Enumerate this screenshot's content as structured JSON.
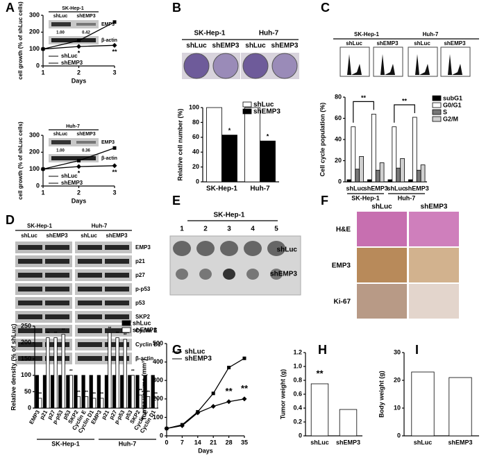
{
  "panels": [
    "A",
    "B",
    "C",
    "D",
    "E",
    "F",
    "G",
    "H",
    "I"
  ],
  "panel_a": {
    "blots": [
      {
        "cell": "SK-Hep-1",
        "lanes": [
          "shLuc",
          "shEMP3"
        ],
        "bands": [
          "EMP3",
          "β-actin"
        ],
        "ratios": [
          "1.00",
          "0.42"
        ]
      },
      {
        "cell": "Huh-7",
        "lanes": [
          "shLuc",
          "shEMP3"
        ],
        "bands": [
          "EMP3",
          "β-actin"
        ],
        "ratios": [
          "1.00",
          "0.36"
        ]
      }
    ]
  },
  "panel_b": {
    "cells": [
      "SK-Hep-1",
      "Huh-7"
    ],
    "lanes": [
      "shLuc",
      "shEMP3",
      "shLuc",
      "shEMP3"
    ]
  },
  "panel_c": {
    "cells": [
      "SK-Hep-1",
      "Huh-7"
    ],
    "lanes": [
      "shLuc",
      "shEMP3",
      "shLuc",
      "shEMP3"
    ]
  },
  "panel_d": {
    "cells": [
      "SK-Hep-1",
      "Huh-7"
    ],
    "lanes": [
      "shLuc",
      "shEMP3",
      "shLuc",
      "shEMP3"
    ],
    "bands": [
      "EMP3",
      "p21",
      "p27",
      "p-p53",
      "p53",
      "SKP2",
      "Cyclin E",
      "Cyclin D1",
      "β-actin"
    ]
  },
  "panel_e": {
    "cell": "SK-Hep-1",
    "numbers": [
      "1",
      "2",
      "3",
      "4",
      "5"
    ],
    "rows": [
      "shLuc",
      "shEMP3"
    ]
  },
  "panel_f": {
    "columns": [
      "shLuc",
      "shEMP3"
    ],
    "rows": [
      "H&E",
      "EMP3",
      "Ki-67"
    ]
  },
  "chart_data": [
    {
      "type": "line",
      "x": [
        1,
        2,
        3
      ],
      "xlim": [
        1,
        3
      ],
      "xticks": [
        1,
        2,
        3
      ],
      "ylim": [
        0,
        300
      ],
      "yticks": [
        0,
        100,
        200,
        300
      ],
      "xlabel": "Days",
      "ylabel": "cell growth (% of shLuc cells)",
      "series": [
        {
          "name": "shLuc",
          "color": "#000",
          "values": [
            100,
            150,
            260
          ]
        },
        {
          "name": "shEMP3",
          "color": "#000",
          "values": [
            100,
            115,
            122
          ]
        }
      ],
      "annotations": [
        "*",
        "**"
      ]
    },
    {
      "type": "line",
      "x": [
        1,
        2,
        3
      ],
      "xlim": [
        1,
        3
      ],
      "xticks": [
        1,
        2,
        3
      ],
      "ylim": [
        0,
        300
      ],
      "yticks": [
        0,
        100,
        200,
        300
      ],
      "xlabel": "Days",
      "ylabel": "cell growth (% of shLuc cells)",
      "series": [
        {
          "name": "shLuc",
          "color": "#000",
          "values": [
            100,
            150,
            225
          ]
        },
        {
          "name": "shEMP3",
          "color": "#000",
          "values": [
            100,
            115,
            120
          ]
        }
      ],
      "annotations": [
        "*",
        "**"
      ]
    },
    {
      "type": "bar",
      "categories": [
        "SK-Hep-1",
        "Huh-7"
      ],
      "ylim": [
        0,
        100
      ],
      "yticks": [
        0,
        20,
        40,
        60,
        80,
        100
      ],
      "ylabel": "Relative cell number (%)",
      "series": [
        {
          "name": "shLuc",
          "color": "#ffffff",
          "values": [
            100,
            100
          ]
        },
        {
          "name": "shEMP3",
          "color": "#000000",
          "values": [
            63,
            55
          ]
        }
      ],
      "annotations": [
        "*",
        "*"
      ]
    },
    {
      "type": "bar",
      "categories": [
        "shLuc",
        "shEMP3",
        "shLuc",
        "shEMP3"
      ],
      "groups": [
        "SK-Hep-1",
        "Huh-7"
      ],
      "ylim": [
        0,
        80
      ],
      "yticks": [
        0,
        20,
        40,
        60,
        80
      ],
      "ylabel": "Cell cycle population (%)",
      "series": [
        {
          "name": "subG1",
          "color": "#000000",
          "values": [
            2,
            2,
            2,
            2
          ]
        },
        {
          "name": "G0/G1",
          "color": "#ffffff",
          "values": [
            52,
            64,
            52,
            61
          ]
        },
        {
          "name": "S",
          "color": "#777777",
          "values": [
            12,
            11,
            13,
            11
          ]
        },
        {
          "name": "G2/M",
          "color": "#d0d0d0",
          "values": [
            24,
            18,
            22,
            16
          ]
        }
      ],
      "annotations": [
        "**",
        "**"
      ]
    },
    {
      "type": "bar",
      "categories": [
        "EMP3",
        "p21",
        "p27",
        "p-p53",
        "p53",
        "SKP2",
        "Cyclin E",
        "Cyclin D1",
        "EMP3",
        "p21",
        "p27",
        "p-p53",
        "p53",
        "SKP2",
        "Cyclin E",
        "Cyclin D1"
      ],
      "groups": [
        "SK-Hep-1",
        "Huh-7"
      ],
      "ylim": [
        0,
        250
      ],
      "yticks": [
        0,
        50,
        100,
        150,
        200,
        250
      ],
      "ylabel": "Relative density (% of shLuc)",
      "series": [
        {
          "name": "shLuc",
          "color": "#000000",
          "values": [
            100,
            100,
            100,
            100,
            100,
            100,
            100,
            100,
            100,
            100,
            100,
            100,
            100,
            100,
            100,
            100
          ]
        },
        {
          "name": "shEMP3",
          "color": "#ffffff",
          "values": [
            30,
            215,
            215,
            225,
            100,
            35,
            35,
            30,
            30,
            230,
            215,
            210,
            100,
            40,
            35,
            30
          ]
        }
      ],
      "annotations": [
        "**",
        "**",
        "**",
        "**",
        "**",
        "**",
        "**",
        "**",
        "**",
        "**",
        "**",
        "**",
        "**",
        "**",
        "**",
        "**"
      ]
    },
    {
      "type": "line",
      "x": [
        0,
        7,
        14,
        21,
        28,
        35
      ],
      "xlim": [
        0,
        35
      ],
      "xticks": [
        0,
        7,
        14,
        21,
        28,
        35
      ],
      "ylim": [
        0,
        500
      ],
      "yticks": [
        0,
        100,
        200,
        300,
        400,
        500
      ],
      "xlabel": "Days",
      "ylabel": "Tumor volume (mm³)",
      "series": [
        {
          "name": "shLuc",
          "color": "#000",
          "values": [
            40,
            60,
            130,
            230,
            370,
            420
          ]
        },
        {
          "name": "shEMP3",
          "color": "#000",
          "values": [
            40,
            55,
            125,
            160,
            185,
            200
          ]
        }
      ],
      "annotations": [
        "**",
        "**"
      ]
    },
    {
      "type": "bar",
      "categories": [
        "shLuc",
        "shEMP3"
      ],
      "values": [
        0.75,
        0.38
      ],
      "color": "#ffffff",
      "ylim": [
        0,
        1.2
      ],
      "yticks": [
        0,
        0.2,
        0.4,
        0.6,
        0.8,
        {
          "value": 1,
          "label": "1.0"
        },
        1.2
      ],
      "ylabel": "Tumor weight (g)",
      "annotations": [
        "**"
      ]
    },
    {
      "type": "bar",
      "categories": [
        "shLuc",
        "shEMP3"
      ],
      "values": [
        23,
        21
      ],
      "color": "#ffffff",
      "ylim": [
        0,
        30
      ],
      "yticks": [
        0,
        10,
        20,
        30
      ],
      "ylabel": "Body weight (g)"
    }
  ]
}
